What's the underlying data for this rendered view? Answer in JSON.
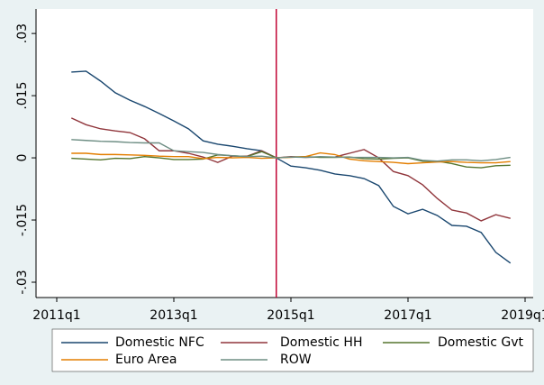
{
  "chart_data": {
    "type": "line",
    "x": [
      "2011q2",
      "2011q3",
      "2011q4",
      "2012q1",
      "2012q2",
      "2012q3",
      "2012q4",
      "2013q1",
      "2013q2",
      "2013q3",
      "2013q4",
      "2014q1",
      "2014q2",
      "2014q3",
      "2014q4",
      "2015q1",
      "2015q2",
      "2015q3",
      "2015q4",
      "2016q1",
      "2016q2",
      "2016q3",
      "2016q4",
      "2017q1",
      "2017q2",
      "2017q3",
      "2017q4",
      "2018q1",
      "2018q2",
      "2018q3",
      "2018q4"
    ],
    "series": [
      {
        "name": "Domestic NFC",
        "color": "#1a476f",
        "values": [
          0.0207,
          0.0209,
          0.0185,
          0.0157,
          0.0139,
          0.0124,
          0.0107,
          0.0089,
          0.007,
          0.0041,
          0.0033,
          0.0028,
          0.0022,
          0.0017,
          0,
          -0.002,
          -0.0024,
          -0.003,
          -0.0039,
          -0.0043,
          -0.005,
          -0.0067,
          -0.0117,
          -0.0135,
          -0.0124,
          -0.0139,
          -0.0163,
          -0.0165,
          -0.018,
          -0.0228,
          -0.0254
        ]
      },
      {
        "name": "Domestic HH",
        "color": "#90353b",
        "values": [
          0.0096,
          0.008,
          0.007,
          0.0065,
          0.0061,
          0.0046,
          0.0017,
          0.0017,
          0.0011,
          0.0002,
          -0.0011,
          0.0004,
          0.0004,
          0.0017,
          0,
          0.0003,
          0.0001,
          0.0002,
          0.0002,
          0.0011,
          0.002,
          0,
          -0.0033,
          -0.0043,
          -0.0065,
          -0.0098,
          -0.0126,
          -0.0133,
          -0.0152,
          -0.0137,
          -0.0146
        ]
      },
      {
        "name": "Domestic Gvt",
        "color": "#55752f",
        "values": [
          -0.0001,
          -0.0003,
          -0.0005,
          -0.0001,
          -0.0002,
          0.0003,
          0,
          -0.0004,
          -0.0004,
          -0.0003,
          0.0007,
          0.0005,
          0.0003,
          0.0015,
          0,
          0.0002,
          0.0003,
          0.0001,
          0.0001,
          0.0002,
          -0.0002,
          -0.0003,
          -0.0001,
          0,
          -0.0008,
          -0.0008,
          -0.0014,
          -0.0022,
          -0.0024,
          -0.0019,
          -0.0018
        ]
      },
      {
        "name": "Euro Area",
        "color": "#e37e00",
        "values": [
          0.0011,
          0.0011,
          0.0008,
          0.0008,
          0.0007,
          0.0006,
          0.0004,
          0.0003,
          0.0003,
          -0.0002,
          0.0001,
          0,
          0.0001,
          -0.0001,
          0,
          0.0001,
          0.0003,
          0.0012,
          0.0008,
          -0.0003,
          -0.0007,
          -0.0009,
          -0.0011,
          -0.0014,
          -0.0012,
          -0.001,
          -0.0009,
          -0.0011,
          -0.0012,
          -0.0012,
          -0.0009
        ]
      },
      {
        "name": "ROW",
        "color": "#6e8e84",
        "values": [
          0.0044,
          0.0042,
          0.004,
          0.0039,
          0.0037,
          0.0036,
          0.0036,
          0.0017,
          0.0015,
          0.0013,
          0.0008,
          0.0005,
          0.0003,
          0.0004,
          0,
          0.0002,
          0.0001,
          0.0003,
          0.0002,
          0.0001,
          0.0001,
          0.0001,
          0,
          0.0001,
          -0.0006,
          -0.0008,
          -0.0005,
          -0.0005,
          -0.0007,
          -0.0004,
          0.0001
        ]
      }
    ],
    "ylim": [
      -0.0337,
      0.0359
    ],
    "yticks": [
      {
        "value": -0.03,
        "label": "-.03"
      },
      {
        "value": -0.015,
        "label": "-.015"
      },
      0,
      {
        "value": 0.015,
        "label": ".015"
      },
      {
        "value": 0.03,
        "label": ".03"
      }
    ],
    "xticks": [
      "2011q1",
      "2013q1",
      "2015q1",
      "2017q1",
      "2019q1"
    ],
    "vline": "2014q4",
    "vline_color": "#c10534"
  }
}
